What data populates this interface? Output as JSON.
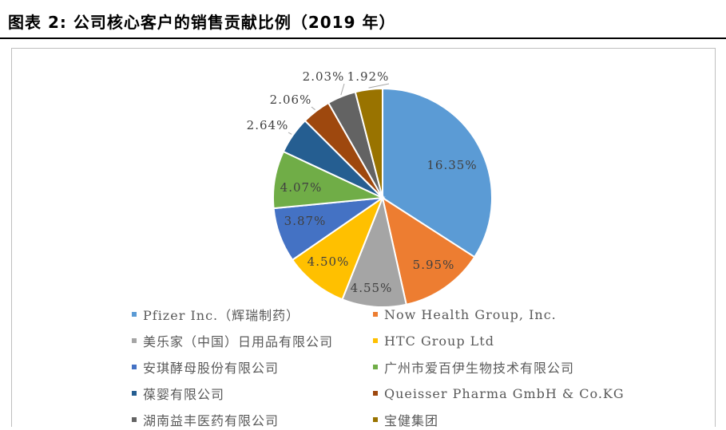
{
  "header": {
    "title": "图表 2:  公司核心客户的销售贡献比例（2019 年）"
  },
  "chart_data": {
    "type": "pie",
    "title": "",
    "series": [
      {
        "name": "Pfizer Inc.（辉瑞制药）",
        "value": 16.35,
        "label": "16.35%",
        "color": "#5b9bd5"
      },
      {
        "name": "Now Health Group, Inc.",
        "value": 5.95,
        "label": "5.95%",
        "color": "#ed7d31"
      },
      {
        "name": "美乐家（中国）日用品有限公司",
        "value": 4.55,
        "label": "4.55%",
        "color": "#a5a5a5"
      },
      {
        "name": "HTC Group Ltd",
        "value": 4.5,
        "label": "4.50%",
        "color": "#ffc000"
      },
      {
        "name": "安琪酵母股份有限公司",
        "value": 3.87,
        "label": "3.87%",
        "color": "#4472c4"
      },
      {
        "name": "广州市爱百伊生物技术有限公司",
        "value": 4.07,
        "label": "4.07%",
        "color": "#70ad47"
      },
      {
        "name": "葆婴有限公司",
        "value": 2.64,
        "label": "2.64%",
        "color": "#255e91"
      },
      {
        "name": "Queisser Pharma GmbH & Co.KG",
        "value": 2.06,
        "label": "2.06%",
        "color": "#9e480e"
      },
      {
        "name": "湖南益丰医药有限公司",
        "value": 2.03,
        "label": "2.03%",
        "color": "#636363"
      },
      {
        "name": "宝健集团",
        "value": 1.92,
        "label": "1.92%",
        "color": "#997300"
      }
    ],
    "legend_position": "bottom"
  }
}
